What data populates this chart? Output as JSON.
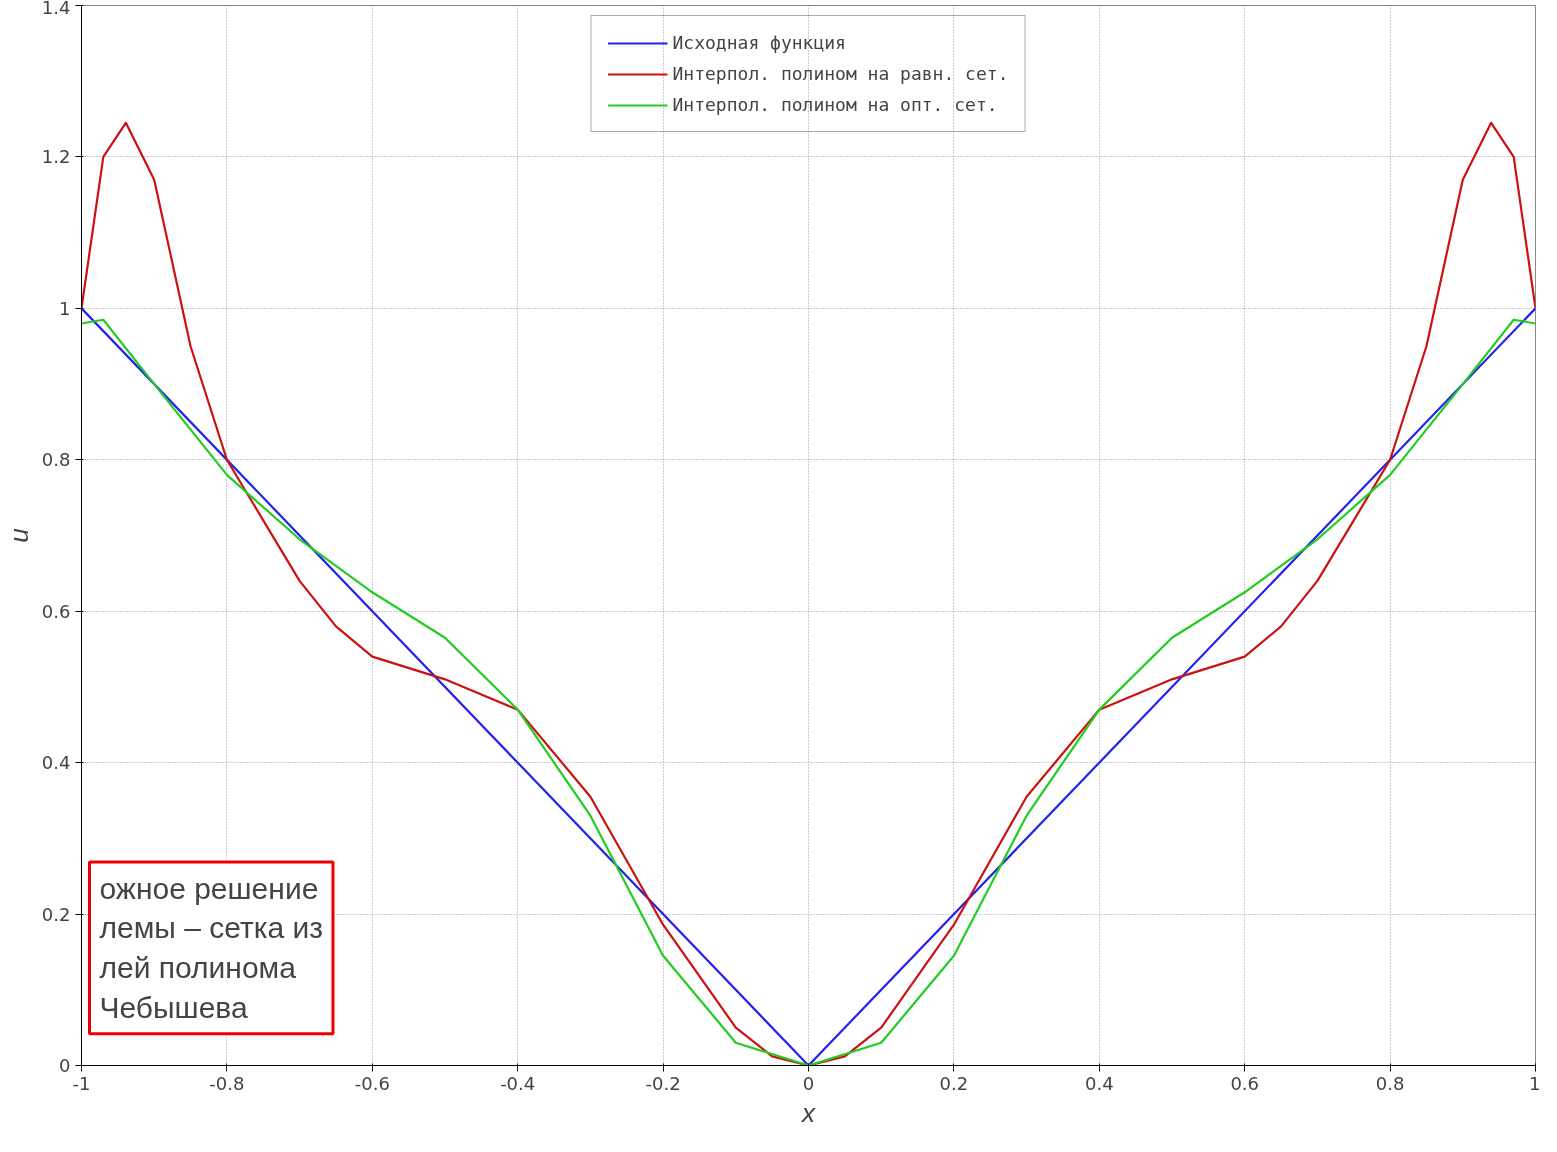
{
  "chart_data": {
    "type": "line",
    "xlabel": "x",
    "ylabel": "u",
    "xlim": [
      -1,
      1
    ],
    "ylim": [
      0,
      1.4
    ],
    "xticks": [
      -1,
      -0.8,
      -0.6,
      -0.4,
      -0.2,
      0,
      0.2,
      0.4,
      0.6,
      0.8,
      1
    ],
    "yticks": [
      0,
      0.2,
      0.4,
      0.6,
      0.8,
      1,
      1.2,
      1.4
    ],
    "grid": true,
    "legend": "top",
    "line_style": "solid",
    "marker": "none",
    "annotations": [
      "ожное решение\nлемы – сетка из\nлей полинома\nЧебышева"
    ],
    "series": [
      {
        "name": "Исходная функция",
        "color": "#2222ee",
        "x": [
          -1,
          0,
          1
        ],
        "values": [
          1,
          0,
          1
        ]
      },
      {
        "name": "Интерпол. полином на равн. сет.",
        "color": "#cc1111",
        "x": [
          -1,
          -0.97,
          -0.939,
          -0.9,
          -0.85,
          -0.8,
          -0.75,
          -0.7,
          -0.65,
          -0.6,
          -0.5,
          -0.45,
          -0.4,
          -0.3,
          -0.2,
          -0.1,
          -0.05,
          0,
          0.05,
          0.1,
          0.2,
          0.3,
          0.4,
          0.45,
          0.5,
          0.6,
          0.65,
          0.7,
          0.75,
          0.8,
          0.85,
          0.9,
          0.939,
          0.97,
          1
        ],
        "values": [
          1,
          1.2,
          1.245,
          1.17,
          0.95,
          0.8,
          0.72,
          0.64,
          0.58,
          0.54,
          0.51,
          0.49,
          0.47,
          0.355,
          0.186,
          0.05,
          0.012,
          0,
          0.012,
          0.05,
          0.186,
          0.355,
          0.47,
          0.49,
          0.51,
          0.54,
          0.58,
          0.64,
          0.72,
          0.8,
          0.95,
          1.17,
          1.245,
          1.2,
          1
        ]
      },
      {
        "name": "Интерпол. полином на опт. сет.",
        "color": "#22cc22",
        "x": [
          -1,
          -0.97,
          -0.9,
          -0.8,
          -0.7,
          -0.6,
          -0.5,
          -0.4,
          -0.3,
          -0.2,
          -0.1,
          0,
          0.1,
          0.2,
          0.3,
          0.4,
          0.5,
          0.6,
          0.7,
          0.8,
          0.9,
          0.97,
          1
        ],
        "values": [
          0.98,
          0.985,
          0.9,
          0.78,
          0.695,
          0.625,
          0.565,
          0.47,
          0.33,
          0.145,
          0.03,
          0,
          0.03,
          0.145,
          0.33,
          0.47,
          0.565,
          0.625,
          0.695,
          0.78,
          0.9,
          0.985,
          0.98
        ]
      }
    ]
  }
}
